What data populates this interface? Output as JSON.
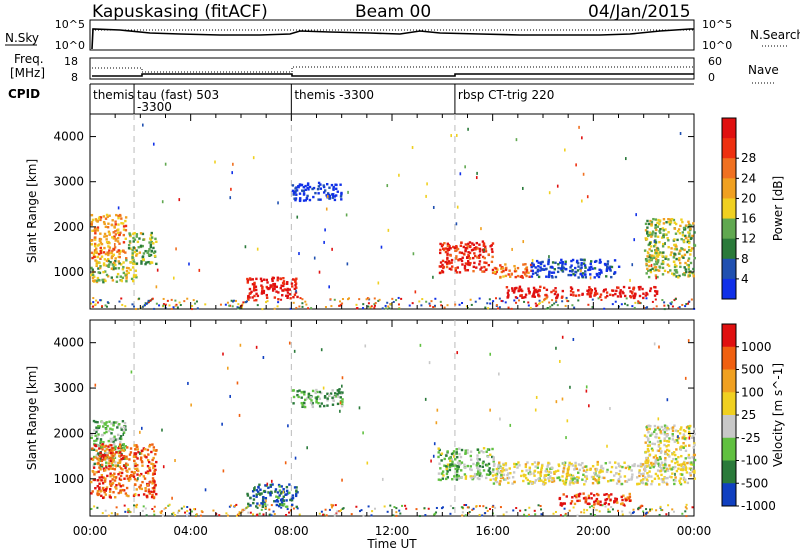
{
  "header": {
    "radar": "Kapuskasing (fitACF)",
    "beam": "Beam 00",
    "date": "04/Jan/2015"
  },
  "nsky_panel": {
    "left_label": "N.Sky",
    "left_ticks": [
      "10^5",
      "10^0"
    ],
    "right_label": "N.Search",
    "right_ticks": [
      "10^5",
      "10^0"
    ]
  },
  "freq_panel": {
    "left_label_line1": "Freq.",
    "left_label_line2": "[MHz]",
    "left_ticks": [
      "18",
      "8"
    ],
    "right_label": "Nave",
    "right_ticks": [
      "60",
      "0"
    ]
  },
  "cpid": {
    "label": "CPID",
    "segments": [
      {
        "start_h": 0.0,
        "lines": [
          "themis",
          ""
        ]
      },
      {
        "start_h": 1.75,
        "lines": [
          "tau (fast) 503",
          "-3300"
        ]
      },
      {
        "start_h": 8.0,
        "lines": [
          "themis -3300",
          ""
        ]
      },
      {
        "start_h": 14.5,
        "lines": [
          "rbsp CT-trig 220",
          ""
        ]
      }
    ]
  },
  "x_axis": {
    "label": "Time UT",
    "ticks": [
      "00:00",
      "04:00",
      "08:00",
      "12:00",
      "16:00",
      "20:00",
      "00:00"
    ]
  },
  "chart_data": [
    {
      "type": "heatmap",
      "name": "power",
      "ylabel": "Slant Range [km]",
      "xlim_hours": [
        0,
        24
      ],
      "ylim_km": [
        180,
        4500
      ],
      "yticks": [
        "1000",
        "2000",
        "3000",
        "4000"
      ],
      "colorbar": {
        "label": "Power [dB]",
        "ticks": [
          "4",
          "8",
          "12",
          "16",
          "20",
          "24",
          "28"
        ],
        "colors": [
          "#1030e8",
          "#2050b0",
          "#2a7a3a",
          "#60a850",
          "#f0d020",
          "#f0a020",
          "#f07020",
          "#ee3010",
          "#e01010"
        ]
      },
      "regions": [
        {
          "t0": 0.0,
          "t1": 1.4,
          "r0": 1300,
          "r1": 2300,
          "level": 0.65
        },
        {
          "t0": 0.0,
          "t1": 1.8,
          "r0": 800,
          "r1": 1300,
          "level": 0.45
        },
        {
          "t0": 1.5,
          "t1": 2.6,
          "r0": 1200,
          "r1": 1900,
          "level": 0.4
        },
        {
          "t0": 6.2,
          "t1": 8.2,
          "r0": 400,
          "r1": 900,
          "level": 0.95
        },
        {
          "t0": 8.0,
          "t1": 10.0,
          "r0": 2600,
          "r1": 3000,
          "level": 0.05
        },
        {
          "t0": 13.8,
          "t1": 16.0,
          "r0": 1000,
          "r1": 1700,
          "level": 0.9
        },
        {
          "t0": 16.0,
          "t1": 17.5,
          "r0": 900,
          "r1": 1200,
          "level": 0.7
        },
        {
          "t0": 16.5,
          "t1": 22.5,
          "r0": 450,
          "r1": 700,
          "level": 0.95
        },
        {
          "t0": 17.5,
          "t1": 21.0,
          "r0": 900,
          "r1": 1300,
          "level": 0.1
        },
        {
          "t0": 22.0,
          "t1": 24.0,
          "r0": 900,
          "r1": 2200,
          "level": 0.45
        }
      ]
    },
    {
      "type": "heatmap",
      "name": "velocity",
      "ylabel": "Slant Range [km]",
      "xlim_hours": [
        0,
        24
      ],
      "ylim_km": [
        180,
        4500
      ],
      "yticks": [
        "1000",
        "2000",
        "3000",
        "4000"
      ],
      "colorbar": {
        "label": "Velocity [m s^-1]",
        "ticks": [
          "1000",
          "500",
          "100",
          "25",
          "-25",
          "-100",
          "-500",
          "-1000"
        ],
        "colors": [
          "#1040c0",
          "#2a7a3a",
          "#60c040",
          "#c8c8c8",
          "#f0d020",
          "#f0a020",
          "#f06010",
          "#e01010"
        ]
      },
      "regions": [
        {
          "t0": 0.0,
          "t1": 1.4,
          "r0": 1300,
          "r1": 2300,
          "level": 0.3
        },
        {
          "t0": 0.0,
          "t1": 2.6,
          "r0": 600,
          "r1": 1800,
          "level": 0.8
        },
        {
          "t0": 6.2,
          "t1": 8.2,
          "r0": 400,
          "r1": 900,
          "level": 0.12
        },
        {
          "t0": 8.0,
          "t1": 10.0,
          "r0": 2600,
          "r1": 3000,
          "level": 0.3
        },
        {
          "t0": 13.8,
          "t1": 16.0,
          "r0": 1000,
          "r1": 1700,
          "level": 0.35
        },
        {
          "t0": 16.0,
          "t1": 24.0,
          "r0": 900,
          "r1": 1400,
          "level": 0.5
        },
        {
          "t0": 18.5,
          "t1": 21.5,
          "r0": 450,
          "r1": 700,
          "level": 0.85
        },
        {
          "t0": 22.0,
          "t1": 24.0,
          "r0": 1200,
          "r1": 2200,
          "level": 0.5
        }
      ]
    }
  ]
}
